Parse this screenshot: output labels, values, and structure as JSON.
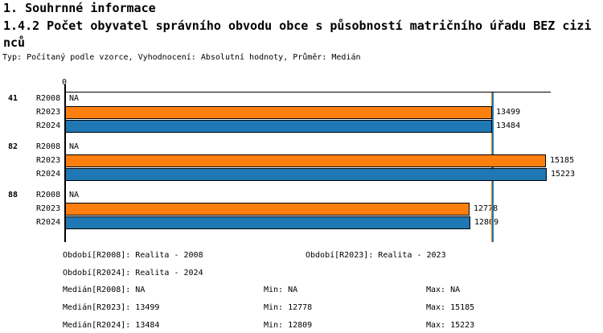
{
  "header": {
    "title": "1. Souhrnné informace",
    "subtitle_lines": [
      "1.4.2 Počet obyvatel správního obvodu obce s působností matričního úřadu BEZ cizi",
      "nců"
    ],
    "type_line": "Typ: Počítaný podle vzorce, Vyhodnocení: Absolutní hodnoty, Průměr: Medián"
  },
  "chart_data": {
    "type": "bar",
    "orientation": "horizontal",
    "title": "1.4.2 Počet obyvatel správního obvodu obce s působností matričního úřadu BEZ cizinců",
    "x_axis": {
      "origin_label": "0",
      "min": 0,
      "max": 15223,
      "grid": false
    },
    "series": [
      "R2008",
      "R2023",
      "R2024"
    ],
    "colors": {
      "R2023": "#FF7F0E",
      "R2024": "#1F77B4"
    },
    "na_label": "NA",
    "groups": [
      {
        "label": "41",
        "values": {
          "R2008": null,
          "R2023": 13499,
          "R2024": 13484
        }
      },
      {
        "label": "82",
        "values": {
          "R2008": null,
          "R2023": 15185,
          "R2024": 15223
        }
      },
      {
        "label": "88",
        "values": {
          "R2008": null,
          "R2023": 12778,
          "R2024": 12809
        }
      }
    ],
    "median_lines": {
      "R2023": 13499,
      "R2024": 13484
    }
  },
  "footer": {
    "rows": [
      {
        "col1": "Období[R2008]: Realita - 2008",
        "col2": "Období[R2023]: Realita - 2023"
      },
      {
        "col1": "Období[R2024]: Realita - 2024"
      },
      {
        "col1": "Medián[R2008]: NA",
        "min": "Min: NA",
        "max": "Max: NA"
      },
      {
        "col1": "Medián[R2023]: 13499",
        "min": "Min: 12778",
        "max": "Max: 15185"
      },
      {
        "col1": "Medián[R2024]: 13484",
        "min": "Min: 12809",
        "max": "Max: 15223"
      }
    ]
  }
}
